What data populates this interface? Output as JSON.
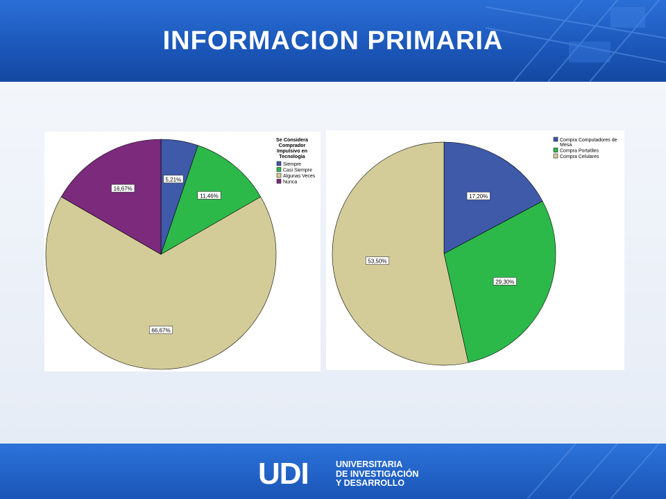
{
  "slide": {
    "title": "INFORMACION PRIMARIA"
  },
  "logo": {
    "mark": "UDI",
    "lines": [
      "UNIVERSITARIA",
      "DE INVESTIGACIÓN",
      "Y DESARROLLO"
    ]
  },
  "chart_data": [
    {
      "type": "pie",
      "legend_title": [
        "Se Considera",
        "Comprador",
        "Impulsivo en",
        "Tecnologia"
      ],
      "legend_position": "top-right",
      "categories": [
        "Siempre",
        "Casi Siempre",
        "Algunas Veces",
        "Nunca"
      ],
      "values": [
        5.21,
        11.46,
        66.67,
        16.67
      ],
      "data_labels": [
        "5,21%",
        "11,46%",
        "66,67%",
        "16,67%"
      ],
      "colors": [
        "#3e5aa8",
        "#2db84a",
        "#d3cc98",
        "#7b2a7c"
      ]
    },
    {
      "type": "pie",
      "legend_position": "top-right",
      "categories": [
        "Compra Computadores de Mesa",
        "Compra Portatiles",
        "Compra Celulares"
      ],
      "legend_lines": [
        [
          "Compra Computadores de",
          "Mesa"
        ],
        [
          "Compra Portatiles"
        ],
        [
          "Compra Celulares"
        ]
      ],
      "values": [
        17.2,
        29.3,
        53.5
      ],
      "data_labels": [
        "17,20%",
        "29,30%",
        "53,50%"
      ],
      "colors": [
        "#3e5aa8",
        "#2db84a",
        "#d3cc98"
      ]
    }
  ]
}
